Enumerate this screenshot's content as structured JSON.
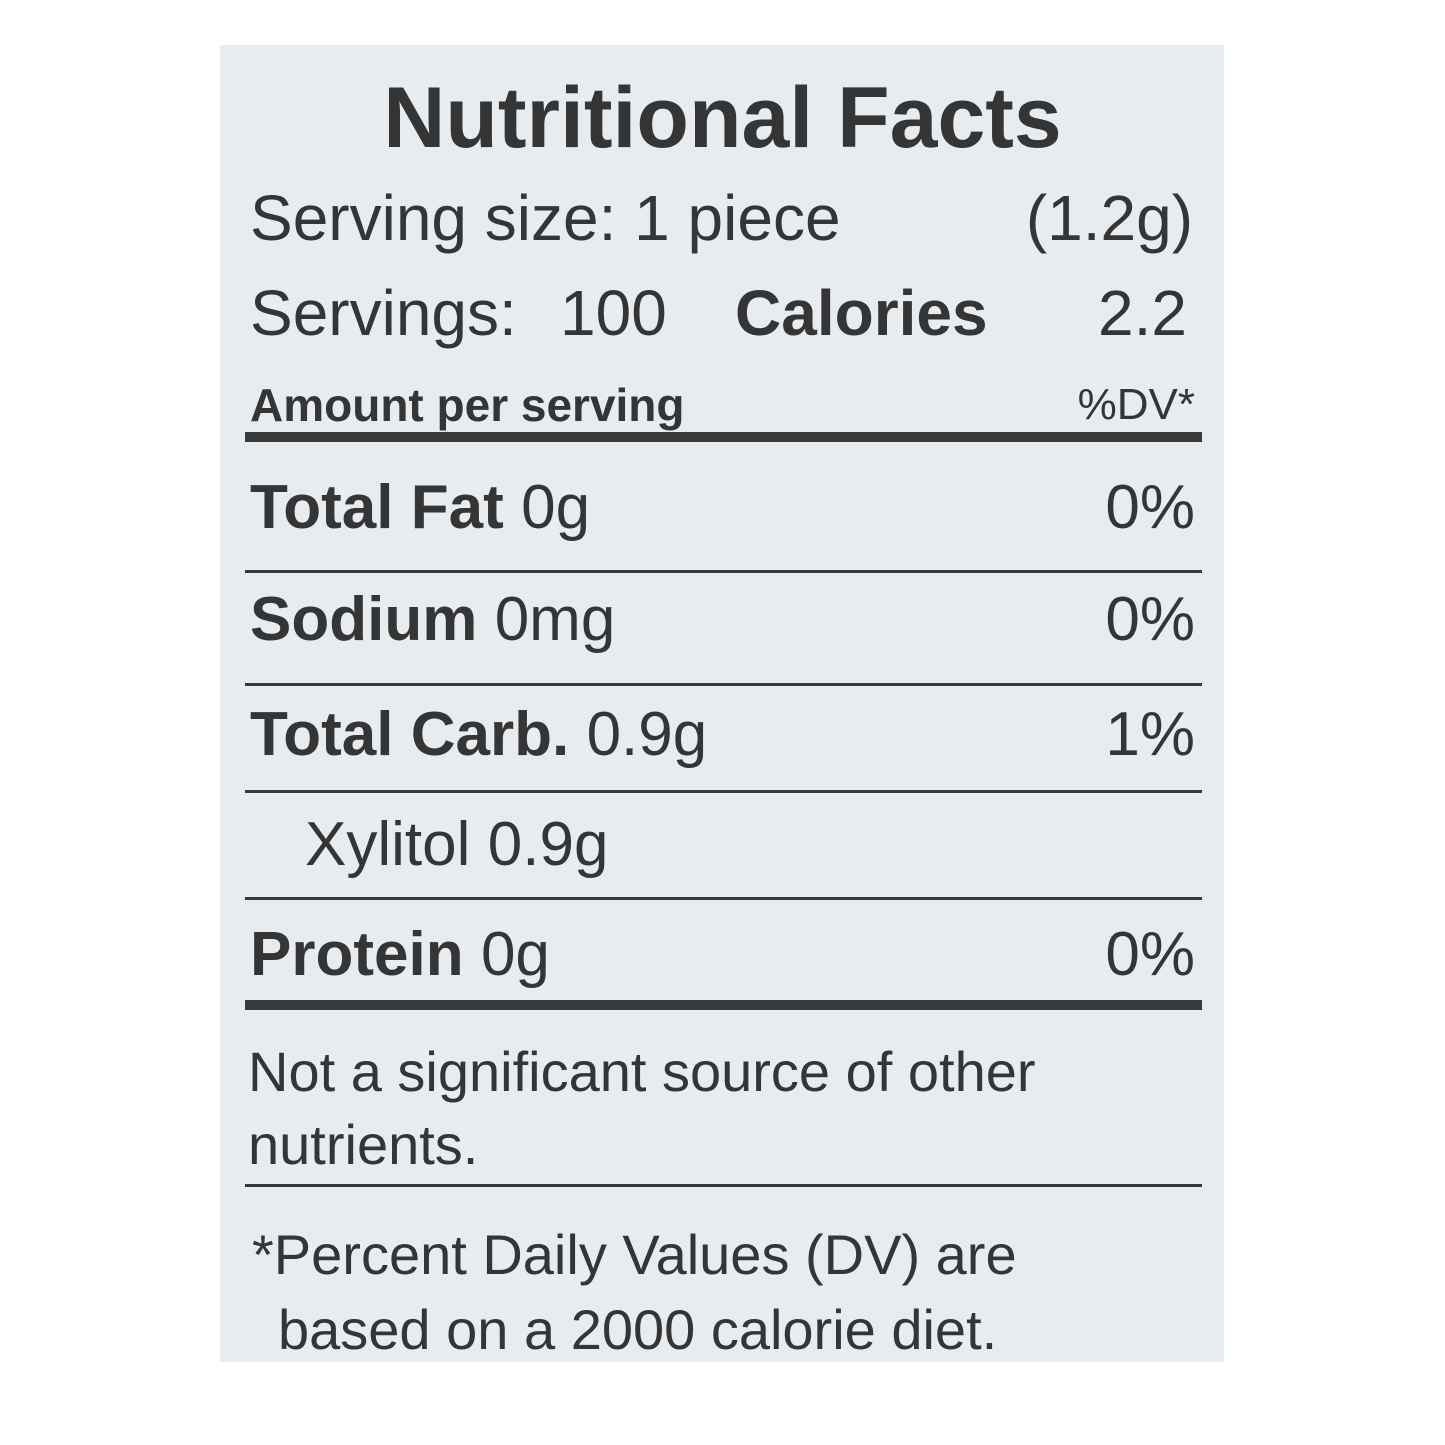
{
  "title": "Nutritional Facts",
  "serving": {
    "size_label": "Serving size: 1 piece",
    "size_weight": "(1.2g)",
    "servings_label": "Servings:",
    "servings": "100",
    "calories_label": "Calories",
    "calories": "2.2"
  },
  "header": {
    "amount": "Amount per serving",
    "dv": "%DV*"
  },
  "nutrients": [
    {
      "name": "Total Fat",
      "amount": "0g",
      "dv": "0%"
    },
    {
      "name": "Sodium",
      "amount": "0mg",
      "dv": "0%"
    },
    {
      "name": "Total Carb.",
      "amount": "0.9g",
      "dv": "1%"
    },
    {
      "name": "Xylitol",
      "amount": "0.9g"
    },
    {
      "name": "Protein",
      "amount": "0g",
      "dv": "0%"
    }
  ],
  "notes": [
    [
      "Not a significant source of other",
      "nutrients."
    ],
    [
      "*Percent Daily Values (DV) are",
      "based on a 2000 calorie diet."
    ]
  ]
}
